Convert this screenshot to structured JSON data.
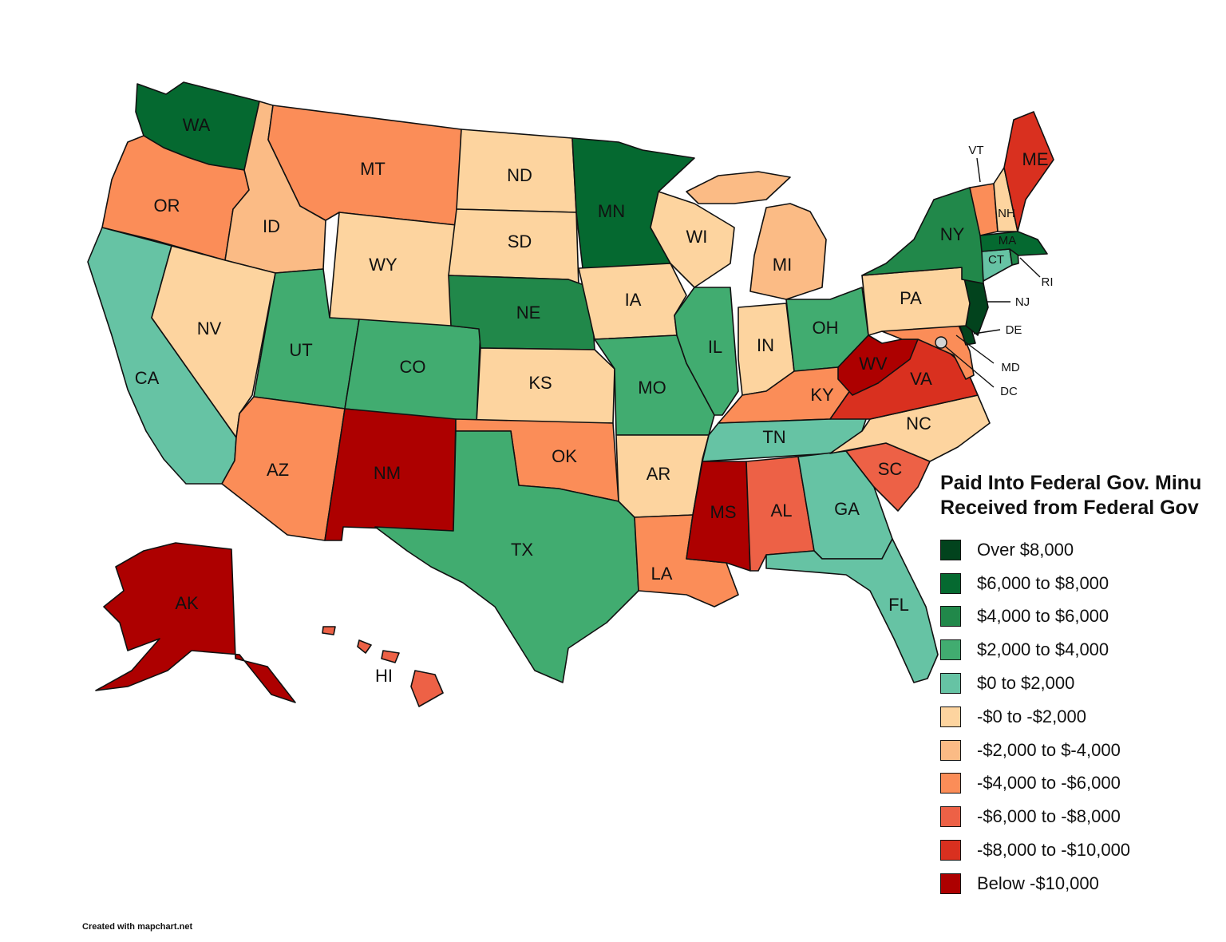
{
  "title_lines": [
    "Paid Into Federal Gov. Minu",
    "Received from Federal Gov"
  ],
  "legend": [
    {
      "label": "Over $8,000",
      "color": "#02431d"
    },
    {
      "label": "$6,000 to $8,000",
      "color": "#056930"
    },
    {
      "label": "$4,000 to $6,000",
      "color": "#21884a"
    },
    {
      "label": "$2,000 to $4,000",
      "color": "#41ac70"
    },
    {
      "label": "$0 to $2,000",
      "color": "#66c3a4"
    },
    {
      "label": "-$0 to -$2,000",
      "color": "#fdd49f"
    },
    {
      "label": "-$2,000 to $-4,000",
      "color": "#fbbb85"
    },
    {
      "label": "-$4,000 to -$6,000",
      "color": "#fb8d58"
    },
    {
      "label": "-$6,000 to -$8,000",
      "color": "#ed6146"
    },
    {
      "label": "-$8,000 to -$10,000",
      "color": "#d9301f"
    },
    {
      "label": "Below -$10,000",
      "color": "#ad0000"
    }
  ],
  "states": [
    {
      "abbr": "WA",
      "category": 1
    },
    {
      "abbr": "OR",
      "category": 7
    },
    {
      "abbr": "CA",
      "category": 4
    },
    {
      "abbr": "ID",
      "category": 6
    },
    {
      "abbr": "NV",
      "category": 5
    },
    {
      "abbr": "MT",
      "category": 7
    },
    {
      "abbr": "WY",
      "category": 5
    },
    {
      "abbr": "UT",
      "category": 3
    },
    {
      "abbr": "AZ",
      "category": 7
    },
    {
      "abbr": "CO",
      "category": 3
    },
    {
      "abbr": "NM",
      "category": 10
    },
    {
      "abbr": "ND",
      "category": 5
    },
    {
      "abbr": "SD",
      "category": 5
    },
    {
      "abbr": "NE",
      "category": 2
    },
    {
      "abbr": "KS",
      "category": 5
    },
    {
      "abbr": "OK",
      "category": 7
    },
    {
      "abbr": "TX",
      "category": 3
    },
    {
      "abbr": "MN",
      "category": 1
    },
    {
      "abbr": "IA",
      "category": 5
    },
    {
      "abbr": "MO",
      "category": 3
    },
    {
      "abbr": "AR",
      "category": 5
    },
    {
      "abbr": "LA",
      "category": 7
    },
    {
      "abbr": "WI",
      "category": 5
    },
    {
      "abbr": "IL",
      "category": 3
    },
    {
      "abbr": "MI",
      "category": 6
    },
    {
      "abbr": "IN",
      "category": 5
    },
    {
      "abbr": "OH",
      "category": 3
    },
    {
      "abbr": "KY",
      "category": 7
    },
    {
      "abbr": "TN",
      "category": 4
    },
    {
      "abbr": "MS",
      "category": 10
    },
    {
      "abbr": "AL",
      "category": 8
    },
    {
      "abbr": "GA",
      "category": 4
    },
    {
      "abbr": "FL",
      "category": 4
    },
    {
      "abbr": "SC",
      "category": 8
    },
    {
      "abbr": "NC",
      "category": 5
    },
    {
      "abbr": "VA",
      "category": 9
    },
    {
      "abbr": "WV",
      "category": 10
    },
    {
      "abbr": "MD",
      "category": 7
    },
    {
      "abbr": "DE",
      "category": 0
    },
    {
      "abbr": "NJ",
      "category": 0
    },
    {
      "abbr": "PA",
      "category": 5
    },
    {
      "abbr": "NY",
      "category": 2
    },
    {
      "abbr": "CT",
      "category": 4
    },
    {
      "abbr": "RI",
      "category": 2
    },
    {
      "abbr": "MA",
      "category": 1
    },
    {
      "abbr": "VT",
      "category": 7
    },
    {
      "abbr": "NH",
      "category": 5
    },
    {
      "abbr": "ME",
      "category": 9
    },
    {
      "abbr": "AK",
      "category": 10
    },
    {
      "abbr": "HI",
      "category": 8
    }
  ],
  "dc_label": "DC",
  "credit": "Created with mapchart.net"
}
